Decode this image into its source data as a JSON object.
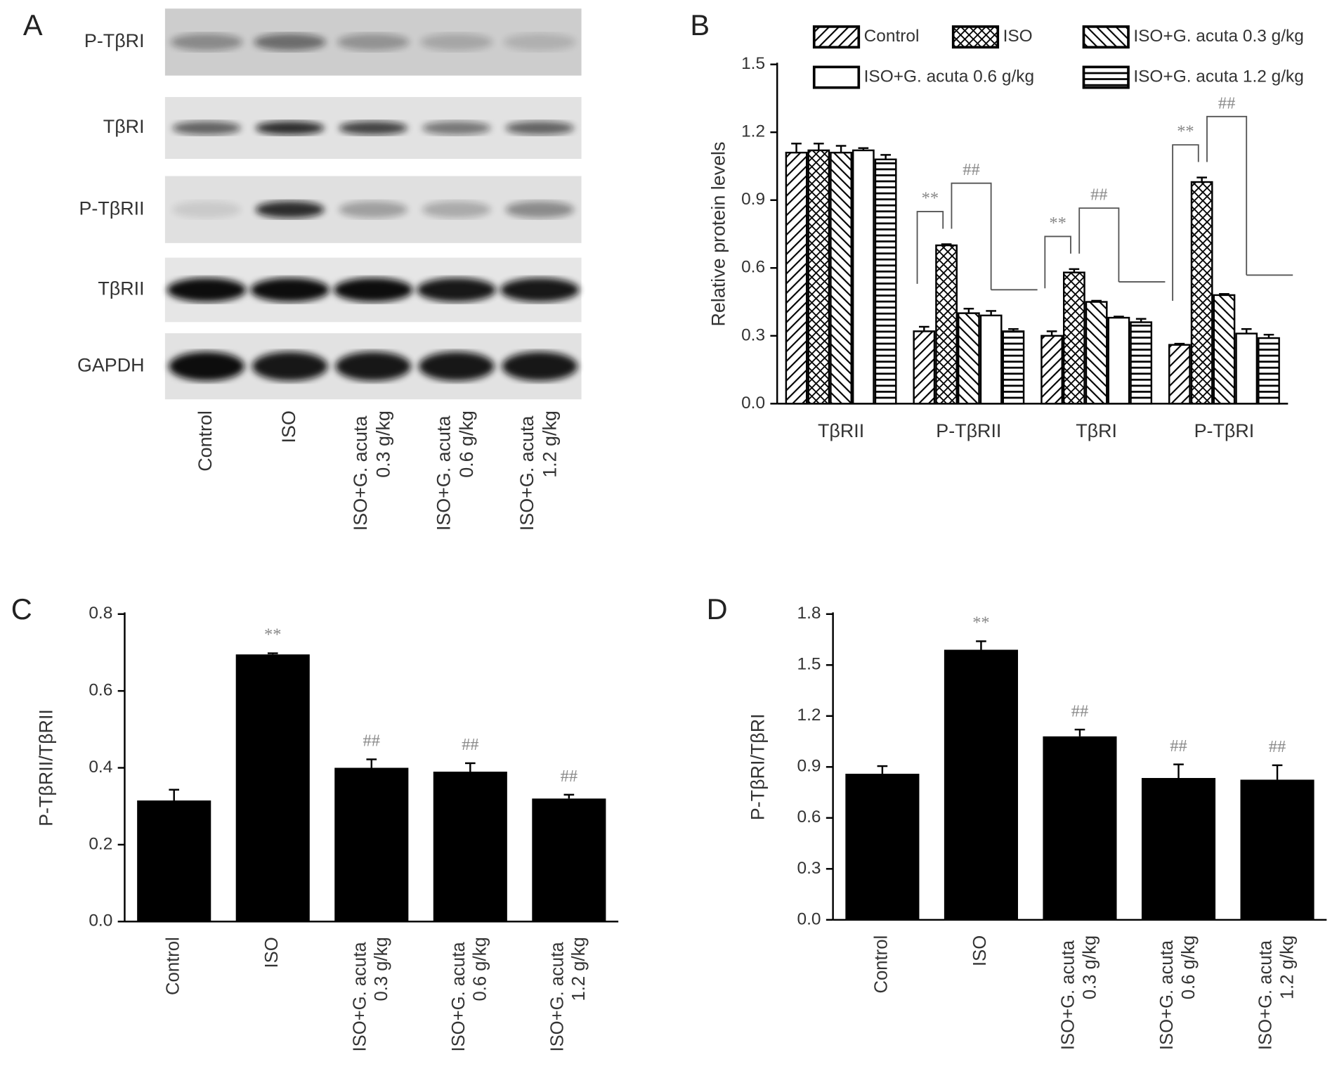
{
  "chart_data": [
    {
      "type": "blot",
      "panel": "A",
      "rows": [
        "P-TβRI",
        "TβRI",
        "P-TβRII",
        "TβRII",
        "GAPDH"
      ],
      "lanes": [
        "Control",
        "ISO",
        "ISO+G. acuta 0.3 g/kg",
        "ISO+G. acuta 0.6 g/kg",
        "ISO+G. acuta 1.2 g/kg"
      ]
    },
    {
      "type": "grouped_bar",
      "panel": "B",
      "ylabel": "Relative protein levels",
      "categories": [
        "TβRII",
        "P-TβRII",
        "TβRI",
        "P-TβRI"
      ],
      "series": [
        {
          "name": "Control",
          "color": "#000000",
          "pattern": "diagonal",
          "values": [
            1.11,
            0.32,
            0.3,
            0.26
          ],
          "errors": [
            0.04,
            0.02,
            0.02,
            0.005
          ]
        },
        {
          "name": "ISO",
          "color": "#000000",
          "pattern": "crosshatch",
          "values": [
            1.12,
            0.7,
            0.58,
            0.98
          ],
          "errors": [
            0.03,
            0.005,
            0.015,
            0.02
          ]
        },
        {
          "name": "ISO+G. acuta 0.3 g/kg",
          "color": "#000000",
          "pattern": "backdiagonal",
          "values": [
            1.11,
            0.4,
            0.45,
            0.48
          ],
          "errors": [
            0.03,
            0.02,
            0.005,
            0.005
          ]
        },
        {
          "name": "ISO+G. acuta 0.6 g/kg",
          "color": "#000000",
          "pattern": "none",
          "values": [
            1.12,
            0.39,
            0.38,
            0.31
          ],
          "errors": [
            0.01,
            0.02,
            0.005,
            0.02
          ]
        },
        {
          "name": "ISO+G. acuta 1.2 g/kg",
          "color": "#000000",
          "pattern": "horizontal",
          "values": [
            1.08,
            0.32,
            0.36,
            0.29
          ],
          "errors": [
            0.02,
            0.01,
            0.015,
            0.015
          ]
        }
      ],
      "significance": [
        null,
        [
          "**",
          "##"
        ],
        [
          "**",
          "##"
        ],
        [
          "**",
          "##"
        ]
      ],
      "ylim": [
        0,
        1.5
      ],
      "yticks": [
        {
          "value": 0,
          "label": "0.0"
        },
        0.3,
        0.6,
        0.9,
        1.2,
        1.5
      ],
      "legend": "top"
    },
    {
      "type": "bar",
      "panel": "C",
      "ylabel": "P-TβRII/TβRII",
      "color": "#000000",
      "categories": [
        "Control",
        "ISO",
        "ISO+G. acuta 0.3 g/kg",
        "ISO+G. acuta 0.6 g/kg",
        "ISO+G. acuta 1.2 g/kg"
      ],
      "values": [
        0.315,
        0.695,
        0.4,
        0.39,
        0.32
      ],
      "errors": [
        0.028,
        0.003,
        0.022,
        0.022,
        0.01
      ],
      "markers": [
        null,
        "**",
        "##",
        "##",
        "##"
      ],
      "ylim": [
        0,
        0.8
      ],
      "yticks": [
        {
          "value": 0,
          "label": "0.0"
        },
        0.2,
        0.4,
        0.6,
        0.8
      ]
    },
    {
      "type": "bar",
      "panel": "D",
      "ylabel": "P-TβRI/TβRI",
      "color": "#000000",
      "categories": [
        "Control",
        "ISO",
        "ISO+G. acuta 0.3 g/kg",
        "ISO+G. acuta 0.6 g/kg",
        "ISO+G. acuta 1.2 g/kg"
      ],
      "values": [
        0.86,
        1.59,
        1.08,
        0.835,
        0.825
      ],
      "errors": [
        0.045,
        0.05,
        0.04,
        0.08,
        0.085
      ],
      "markers": [
        null,
        "**",
        "##",
        "##",
        "##"
      ],
      "ylim": [
        0,
        1.8
      ],
      "yticks": [
        {
          "value": 0,
          "label": "0.0"
        },
        0.3,
        0.6,
        0.9,
        1.2,
        1.5,
        1.8
      ]
    }
  ]
}
